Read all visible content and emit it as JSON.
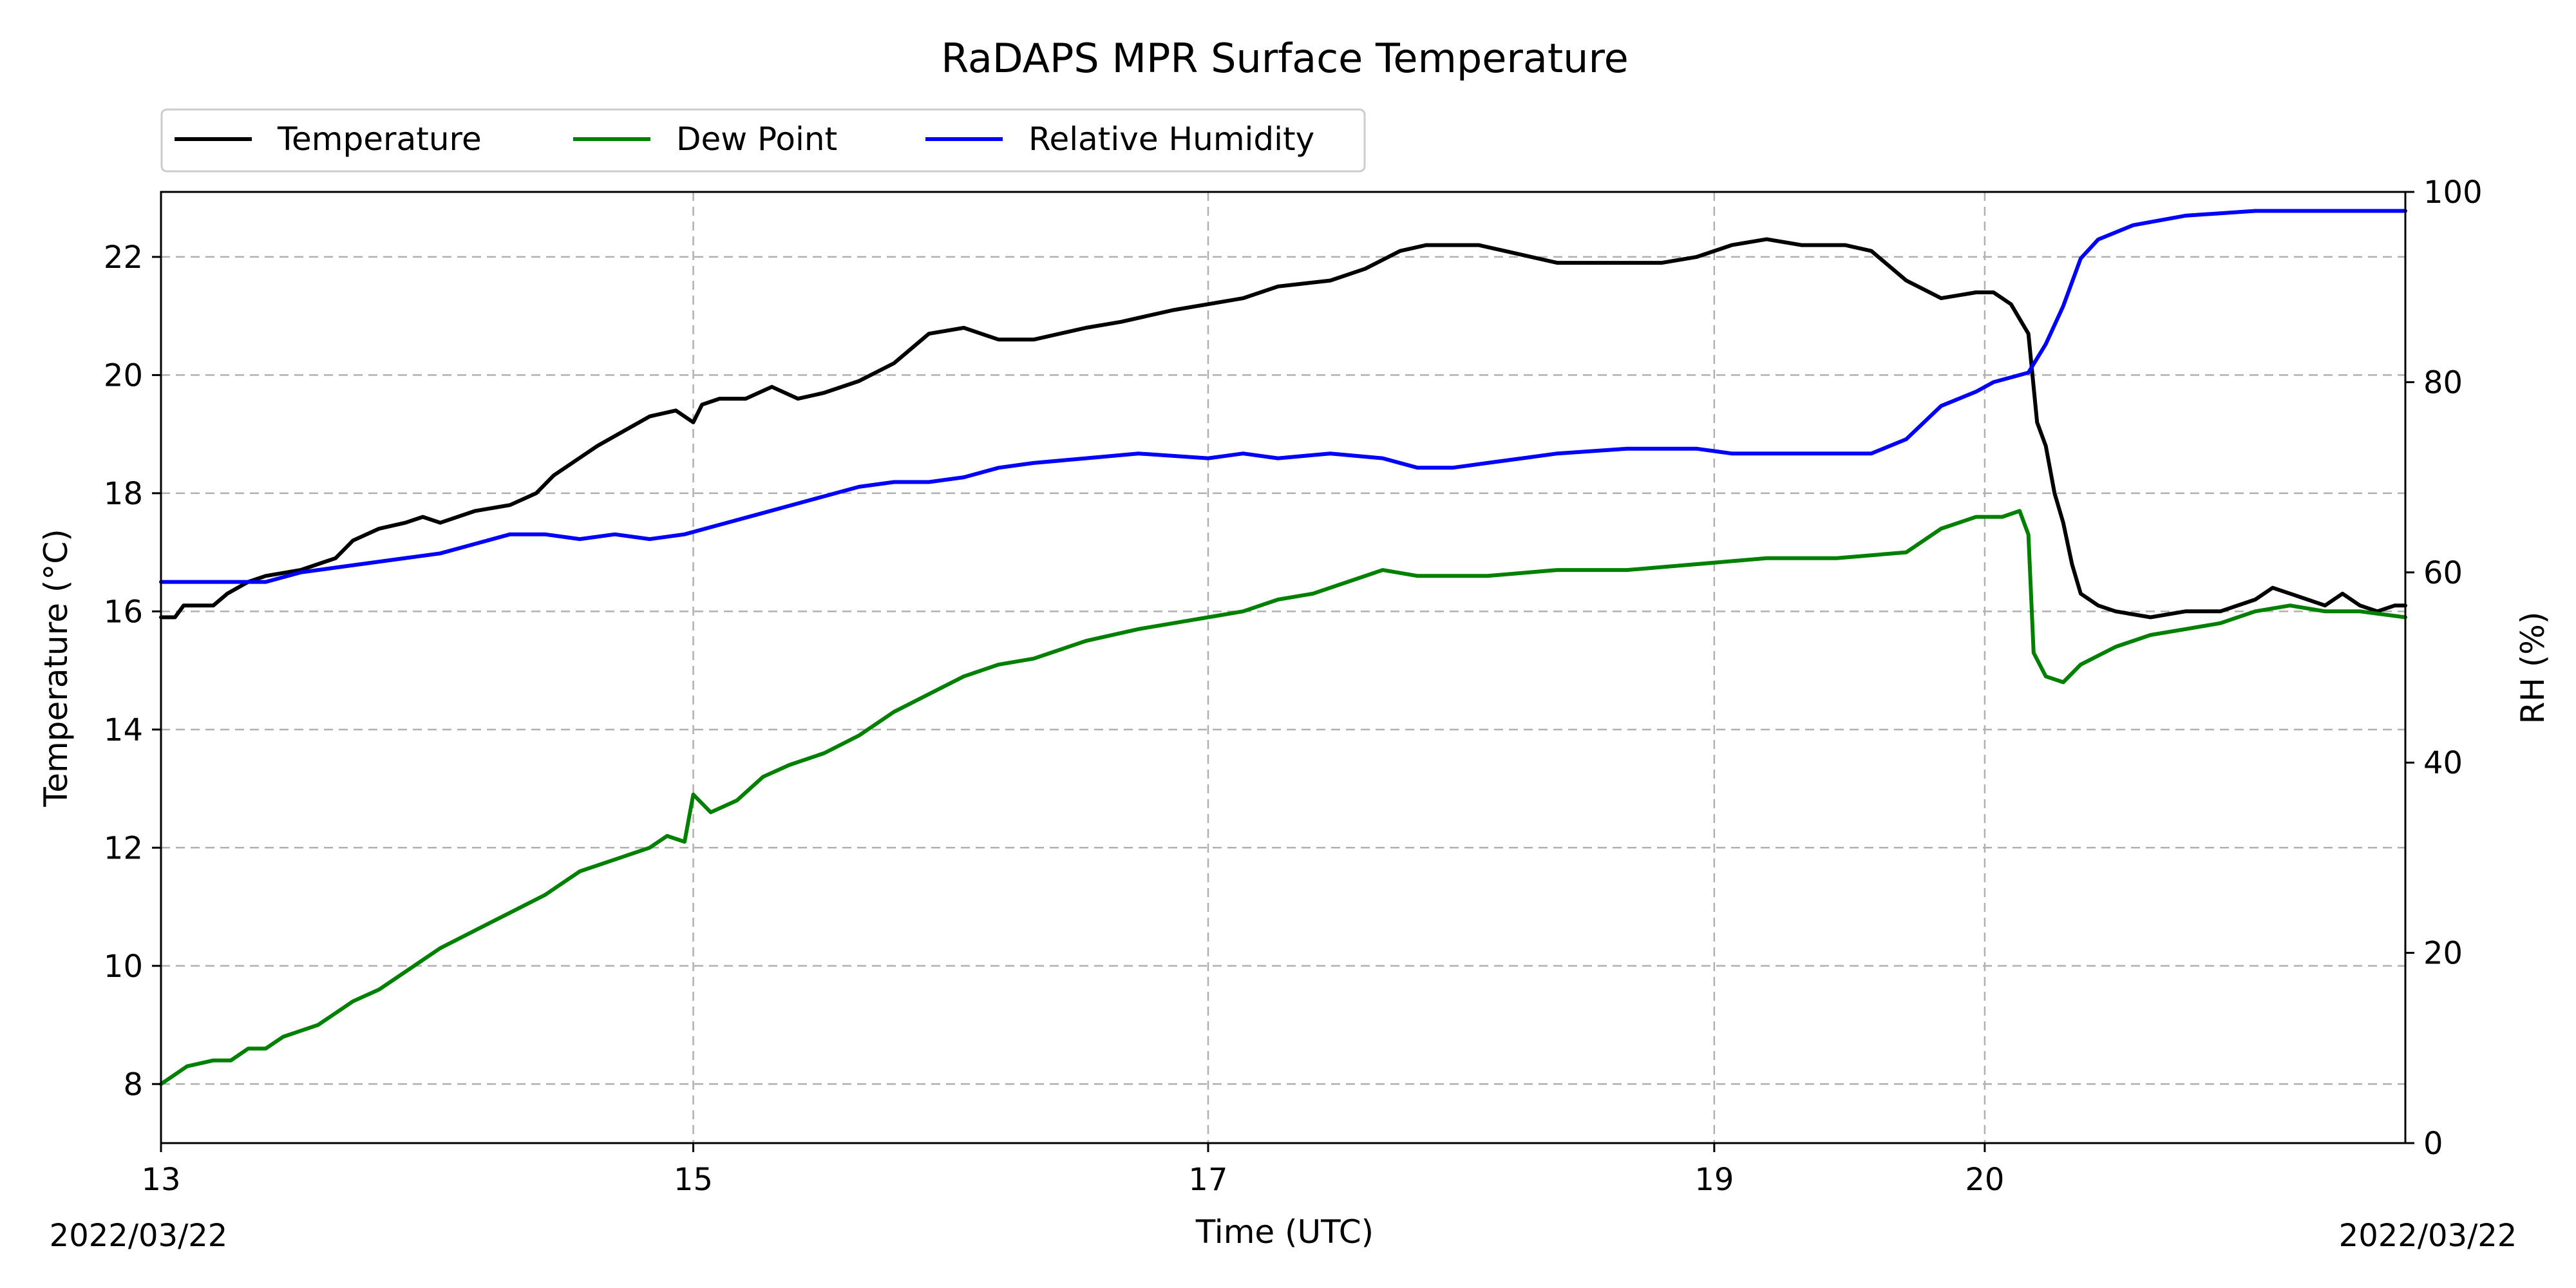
{
  "chart_data": {
    "type": "line",
    "title": "RaDAPS MPR Surface Temperature",
    "xlabel": "Time (UTC)",
    "ylabel": "Temperature ($^\\circ$C)",
    "ylabel_display": "Temperature (°C)",
    "y2label": "RH (%)",
    "x_tick_labels": [
      "13",
      "15",
      "17",
      "19",
      "20"
    ],
    "date_left": "2022/03/22",
    "date_right": "2022/03/22",
    "ylim": [
      7,
      23.1
    ],
    "y2lim": [
      0,
      100
    ],
    "y_ticks": [
      8,
      10,
      12,
      14,
      16,
      18,
      20,
      22
    ],
    "y2_ticks": [
      0,
      20,
      40,
      60,
      80,
      100
    ],
    "grid": true,
    "legend_position": "above-left",
    "series": [
      {
        "name": "Temperature",
        "color": "#000000",
        "axis": "left",
        "points": [
          [
            0.0,
            15.9
          ],
          [
            0.08,
            15.9
          ],
          [
            0.13,
            16.1
          ],
          [
            0.2,
            16.1
          ],
          [
            0.3,
            16.1
          ],
          [
            0.38,
            16.3
          ],
          [
            0.5,
            16.5
          ],
          [
            0.6,
            16.6
          ],
          [
            0.8,
            16.7
          ],
          [
            1.0,
            16.9
          ],
          [
            1.1,
            17.2
          ],
          [
            1.25,
            17.4
          ],
          [
            1.4,
            17.5
          ],
          [
            1.5,
            17.6
          ],
          [
            1.6,
            17.5
          ],
          [
            1.8,
            17.7
          ],
          [
            2.0,
            17.8
          ],
          [
            2.15,
            18.0
          ],
          [
            2.25,
            18.3
          ],
          [
            2.4,
            18.6
          ],
          [
            2.5,
            18.8
          ],
          [
            2.62,
            19.0
          ],
          [
            2.8,
            19.3
          ],
          [
            2.95,
            19.4
          ],
          [
            3.05,
            19.2
          ],
          [
            3.1,
            19.5
          ],
          [
            3.2,
            19.6
          ],
          [
            3.35,
            19.6
          ],
          [
            3.5,
            19.8
          ],
          [
            3.65,
            19.6
          ],
          [
            3.8,
            19.7
          ],
          [
            4.0,
            19.9
          ],
          [
            4.2,
            20.2
          ],
          [
            4.4,
            20.7
          ],
          [
            4.6,
            20.8
          ],
          [
            4.7,
            20.7
          ],
          [
            4.8,
            20.6
          ],
          [
            5.0,
            20.6
          ],
          [
            5.3,
            20.8
          ],
          [
            5.5,
            20.9
          ],
          [
            5.8,
            21.1
          ],
          [
            6.0,
            21.2
          ],
          [
            6.2,
            21.3
          ],
          [
            6.4,
            21.5
          ],
          [
            6.7,
            21.6
          ],
          [
            6.9,
            21.8
          ],
          [
            7.1,
            22.1
          ],
          [
            7.25,
            22.2
          ],
          [
            7.4,
            22.2
          ],
          [
            7.55,
            22.2
          ],
          [
            7.7,
            22.1
          ],
          [
            8.0,
            21.9
          ],
          [
            8.3,
            21.9
          ],
          [
            8.6,
            21.9
          ],
          [
            8.8,
            22.0
          ],
          [
            9.0,
            22.2
          ],
          [
            9.2,
            22.3
          ],
          [
            9.4,
            22.2
          ],
          [
            9.65,
            22.2
          ],
          [
            9.8,
            22.1
          ],
          [
            10.0,
            21.6
          ],
          [
            10.2,
            21.3
          ],
          [
            10.4,
            21.4
          ],
          [
            10.5,
            21.4
          ],
          [
            10.6,
            21.2
          ],
          [
            10.7,
            20.7
          ],
          [
            10.75,
            19.2
          ],
          [
            10.8,
            18.8
          ],
          [
            10.85,
            18.0
          ],
          [
            10.9,
            17.5
          ],
          [
            10.95,
            16.8
          ],
          [
            11.0,
            16.3
          ],
          [
            11.05,
            16.2
          ],
          [
            11.1,
            16.1
          ],
          [
            11.2,
            16.0
          ],
          [
            11.4,
            15.9
          ],
          [
            11.6,
            16.0
          ],
          [
            11.8,
            16.0
          ],
          [
            12.0,
            16.2
          ],
          [
            12.1,
            16.4
          ],
          [
            12.2,
            16.3
          ],
          [
            12.3,
            16.2
          ],
          [
            12.4,
            16.1
          ],
          [
            12.5,
            16.3
          ],
          [
            12.6,
            16.1
          ],
          [
            12.7,
            16.0
          ],
          [
            12.8,
            16.1
          ],
          [
            12.86,
            16.1
          ]
        ]
      },
      {
        "name": "Dew Point",
        "color": "#008000",
        "axis": "left",
        "points": [
          [
            0.0,
            8.0
          ],
          [
            0.15,
            8.3
          ],
          [
            0.3,
            8.4
          ],
          [
            0.4,
            8.4
          ],
          [
            0.5,
            8.6
          ],
          [
            0.6,
            8.6
          ],
          [
            0.7,
            8.8
          ],
          [
            0.8,
            8.9
          ],
          [
            0.9,
            9.0
          ],
          [
            1.0,
            9.2
          ],
          [
            1.1,
            9.4
          ],
          [
            1.25,
            9.6
          ],
          [
            1.4,
            9.9
          ],
          [
            1.5,
            10.1
          ],
          [
            1.6,
            10.3
          ],
          [
            1.8,
            10.6
          ],
          [
            2.0,
            10.9
          ],
          [
            2.2,
            11.2
          ],
          [
            2.4,
            11.6
          ],
          [
            2.6,
            11.8
          ],
          [
            2.8,
            12.0
          ],
          [
            2.9,
            12.2
          ],
          [
            3.0,
            12.1
          ],
          [
            3.05,
            12.9
          ],
          [
            3.15,
            12.6
          ],
          [
            3.3,
            12.8
          ],
          [
            3.45,
            13.2
          ],
          [
            3.6,
            13.4
          ],
          [
            3.8,
            13.6
          ],
          [
            4.0,
            13.9
          ],
          [
            4.2,
            14.3
          ],
          [
            4.4,
            14.6
          ],
          [
            4.6,
            14.9
          ],
          [
            4.8,
            15.1
          ],
          [
            5.0,
            15.2
          ],
          [
            5.3,
            15.5
          ],
          [
            5.6,
            15.7
          ],
          [
            5.8,
            15.8
          ],
          [
            6.0,
            15.9
          ],
          [
            6.2,
            16.0
          ],
          [
            6.4,
            16.2
          ],
          [
            6.6,
            16.3
          ],
          [
            6.8,
            16.5
          ],
          [
            7.0,
            16.7
          ],
          [
            7.2,
            16.6
          ],
          [
            7.4,
            16.6
          ],
          [
            7.6,
            16.6
          ],
          [
            8.0,
            16.7
          ],
          [
            8.4,
            16.7
          ],
          [
            8.8,
            16.8
          ],
          [
            9.2,
            16.9
          ],
          [
            9.6,
            16.9
          ],
          [
            10.0,
            17.0
          ],
          [
            10.2,
            17.4
          ],
          [
            10.4,
            17.6
          ],
          [
            10.55,
            17.6
          ],
          [
            10.65,
            17.7
          ],
          [
            10.7,
            17.3
          ],
          [
            10.73,
            15.3
          ],
          [
            10.8,
            14.9
          ],
          [
            10.9,
            14.8
          ],
          [
            11.0,
            15.1
          ],
          [
            11.2,
            15.4
          ],
          [
            11.4,
            15.6
          ],
          [
            11.6,
            15.7
          ],
          [
            11.8,
            15.8
          ],
          [
            12.0,
            16.0
          ],
          [
            12.2,
            16.1
          ],
          [
            12.4,
            16.0
          ],
          [
            12.6,
            16.0
          ],
          [
            12.86,
            15.9
          ]
        ]
      },
      {
        "name": "Relative Humidity",
        "color": "#0000ff",
        "axis": "right",
        "points": [
          [
            0.0,
            59
          ],
          [
            0.1,
            59
          ],
          [
            0.2,
            59
          ],
          [
            0.3,
            59
          ],
          [
            0.4,
            59
          ],
          [
            0.6,
            59
          ],
          [
            0.8,
            60
          ],
          [
            1.0,
            60.5
          ],
          [
            1.2,
            61
          ],
          [
            1.4,
            61.5
          ],
          [
            1.6,
            62
          ],
          [
            1.8,
            63
          ],
          [
            2.0,
            64
          ],
          [
            2.2,
            64
          ],
          [
            2.4,
            63.5
          ],
          [
            2.6,
            64
          ],
          [
            2.8,
            63.5
          ],
          [
            3.0,
            64
          ],
          [
            3.2,
            65
          ],
          [
            3.4,
            66
          ],
          [
            3.6,
            67
          ],
          [
            3.8,
            68
          ],
          [
            4.0,
            69
          ],
          [
            4.2,
            69.5
          ],
          [
            4.4,
            69.5
          ],
          [
            4.6,
            70
          ],
          [
            4.8,
            71
          ],
          [
            5.0,
            71.5
          ],
          [
            5.3,
            72
          ],
          [
            5.6,
            72.5
          ],
          [
            6.0,
            72
          ],
          [
            6.2,
            72.5
          ],
          [
            6.4,
            72
          ],
          [
            6.7,
            72.5
          ],
          [
            7.0,
            72
          ],
          [
            7.2,
            71
          ],
          [
            7.4,
            71
          ],
          [
            7.6,
            71.5
          ],
          [
            7.8,
            72
          ],
          [
            8.0,
            72.5
          ],
          [
            8.4,
            73
          ],
          [
            8.8,
            73
          ],
          [
            9.0,
            72.5
          ],
          [
            9.4,
            72.5
          ],
          [
            9.8,
            72.5
          ],
          [
            10.0,
            74
          ],
          [
            10.2,
            77.5
          ],
          [
            10.4,
            79
          ],
          [
            10.5,
            80
          ],
          [
            10.7,
            81
          ],
          [
            10.8,
            84
          ],
          [
            10.9,
            88
          ],
          [
            11.0,
            93
          ],
          [
            11.1,
            95
          ],
          [
            11.3,
            96.5
          ],
          [
            11.6,
            97.5
          ],
          [
            12.0,
            98
          ],
          [
            12.4,
            98
          ],
          [
            12.86,
            98
          ]
        ]
      }
    ]
  }
}
